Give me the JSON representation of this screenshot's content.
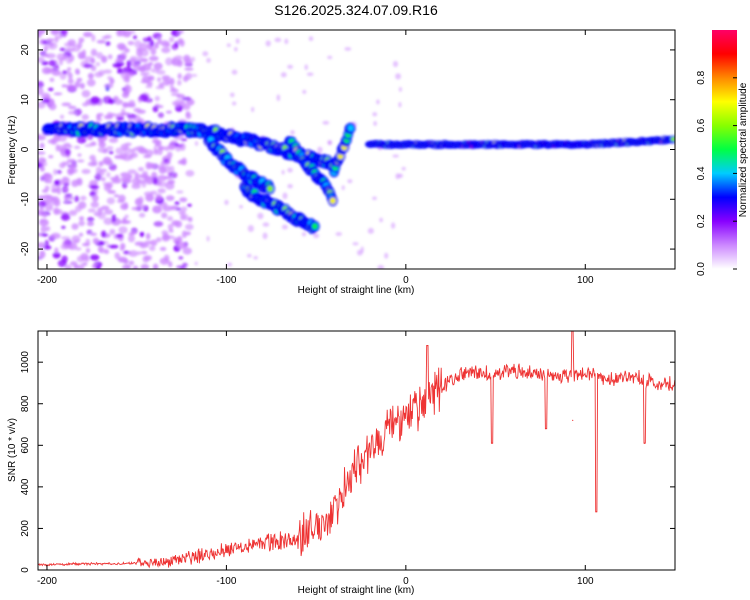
{
  "figure": {
    "title": "S126.2025.324.07.09.R16"
  },
  "chart_data": [
    {
      "type": "heatmap",
      "xlabel": "Height of straight line (km)",
      "ylabel": "Frequency (Hz)",
      "xlim": [
        -205,
        150
      ],
      "ylim": [
        -24,
        24
      ],
      "xticks": [
        -200,
        -100,
        0,
        100
      ],
      "yticks": [
        -20,
        -10,
        0,
        10,
        20
      ],
      "colorbar": {
        "label": "Normalized spectral amplitude",
        "range": [
          0,
          1
        ],
        "ticks": [
          "0.0",
          "0.2",
          "0.4",
          "0.6",
          "0.8"
        ],
        "tick_values": [
          0.0,
          0.2,
          0.4,
          0.6,
          0.8
        ],
        "colors": [
          "#ffffff",
          "#cc88ff",
          "#8800ff",
          "#0000ff",
          "#00ccff",
          "#00ff44",
          "#88ff00",
          "#ffff00",
          "#ff8800",
          "#ff0000",
          "#ff0066"
        ]
      },
      "features": [
        {
          "name": "primary band",
          "x": [
            -200,
            -160,
            -120,
            -100,
            -80,
            -60,
            -40
          ],
          "y": [
            4,
            4,
            4,
            3,
            1,
            -1,
            -3
          ]
        },
        {
          "name": "descending branch 1",
          "x": [
            -110,
            -100,
            -90,
            -80,
            -75
          ],
          "y": [
            2,
            -2,
            -5,
            -7,
            -8
          ]
        },
        {
          "name": "descending branch 2",
          "x": [
            -90,
            -80,
            -70,
            -60,
            -50
          ],
          "y": [
            -8,
            -10,
            -12,
            -14,
            -16
          ]
        },
        {
          "name": "descending branch 3",
          "x": [
            -65,
            -55,
            -45,
            -40
          ],
          "y": [
            2,
            -3,
            -7,
            -11
          ]
        },
        {
          "name": "rising branch",
          "x": [
            -40,
            -35,
            -30
          ],
          "y": [
            -4,
            0,
            5
          ]
        },
        {
          "name": "steady band",
          "x": [
            -20,
            0,
            50,
            100,
            150
          ],
          "y": [
            1,
            1,
            1,
            1,
            2
          ]
        }
      ]
    },
    {
      "type": "line",
      "xlabel": "Height of straight line (km)",
      "ylabel": "SNR (10 * v/v)",
      "xlim": [
        -205,
        150
      ],
      "ylim": [
        0,
        1150
      ],
      "xticks": [
        -200,
        -100,
        0,
        100
      ],
      "yticks": [
        0,
        200,
        400,
        600,
        800,
        1000
      ],
      "series": [
        {
          "name": "SNR",
          "color": "#ee3333",
          "x": [
            -205,
            -180,
            -160,
            -140,
            -130,
            -120,
            -110,
            -100,
            -90,
            -80,
            -70,
            -60,
            -50,
            -45,
            -40,
            -35,
            -30,
            -25,
            -20,
            -15,
            -10,
            -5,
            0,
            5,
            10,
            15,
            20,
            25,
            30,
            40,
            50,
            60,
            70,
            80,
            90,
            100,
            110,
            120,
            130,
            140,
            150
          ],
          "y": [
            25,
            30,
            30,
            35,
            45,
            60,
            80,
            100,
            120,
            130,
            140,
            150,
            200,
            230,
            300,
            380,
            450,
            520,
            580,
            630,
            680,
            700,
            720,
            760,
            800,
            850,
            880,
            910,
            940,
            950,
            940,
            960,
            950,
            930,
            940,
            950,
            920,
            930,
            920,
            900,
            900
          ]
        }
      ],
      "dips": [
        {
          "x": 48,
          "y": 610
        },
        {
          "x": 78,
          "y": 680
        },
        {
          "x": 93,
          "y": 720
        },
        {
          "x": 106,
          "y": 280
        },
        {
          "x": 133,
          "y": 610
        }
      ],
      "spikes": [
        {
          "x": 12,
          "y": 1080
        },
        {
          "x": 93,
          "y": 1150
        }
      ]
    }
  ]
}
